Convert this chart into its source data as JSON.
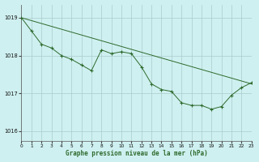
{
  "title": "Graphe pression niveau de la mer (hPa)",
  "bg_color": "#cff0f0",
  "grid_color": "#aacccc",
  "line_color": "#2d6a2d",
  "xlim": [
    0,
    23
  ],
  "ylim": [
    1015.75,
    1019.35
  ],
  "yticks": [
    1016,
    1017,
    1018,
    1019
  ],
  "xticks": [
    0,
    1,
    2,
    3,
    4,
    5,
    6,
    7,
    8,
    9,
    10,
    11,
    12,
    13,
    14,
    15,
    16,
    17,
    18,
    19,
    20,
    21,
    22,
    23
  ],
  "trend_x": [
    0,
    23
  ],
  "trend_y": [
    1019.0,
    1017.25
  ],
  "jagged_x": [
    0,
    1,
    2,
    3,
    4,
    5,
    6,
    7,
    8,
    9,
    10,
    11,
    12,
    13,
    14,
    15,
    16,
    17,
    18,
    19,
    20,
    21,
    22,
    23
  ],
  "jagged_y": [
    1019.0,
    1018.65,
    1018.3,
    1018.2,
    1018.0,
    1017.9,
    1017.75,
    1017.6,
    1018.15,
    1018.05,
    1018.1,
    1018.05,
    1017.7,
    1017.25,
    1017.1,
    1017.05,
    1016.75,
    1016.68,
    1016.68,
    1016.58,
    1016.65,
    1016.95,
    1017.15,
    1017.28
  ]
}
